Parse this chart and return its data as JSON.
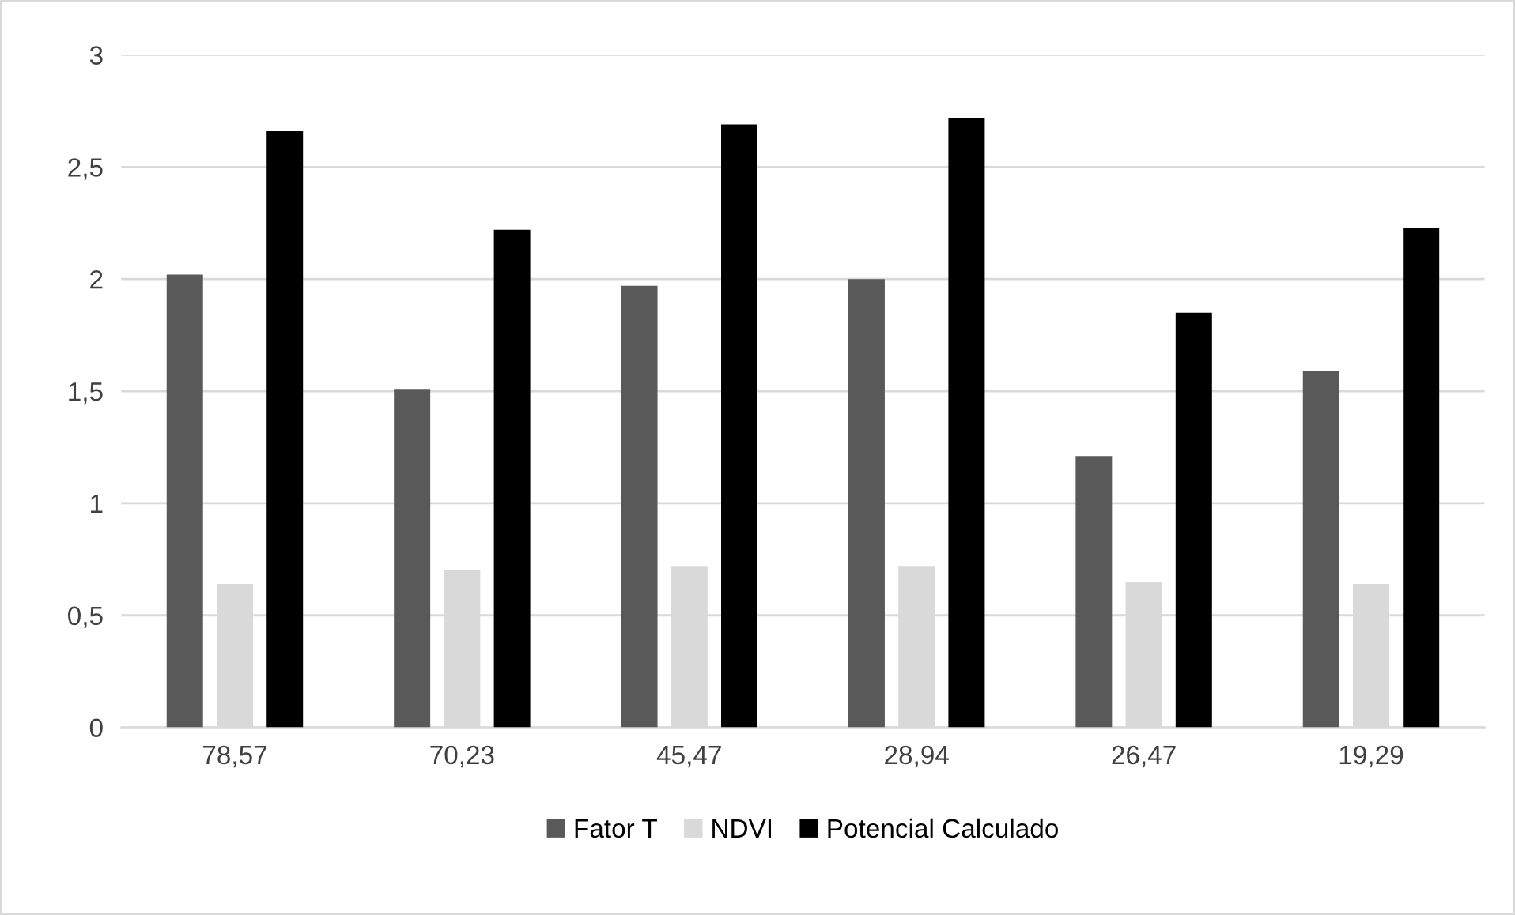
{
  "chart_data": {
    "type": "bar",
    "categories": [
      "78,57",
      "70,23",
      "45,47",
      "28,94",
      "26,47",
      "19,29"
    ],
    "series": [
      {
        "name": "Fator T",
        "color": "#595959",
        "values": [
          2.02,
          1.51,
          1.97,
          2.0,
          1.21,
          1.59
        ]
      },
      {
        "name": "NDVI",
        "color": "#d9d9d9",
        "values": [
          0.64,
          0.7,
          0.72,
          0.72,
          0.65,
          0.64
        ]
      },
      {
        "name": "Potencial Calculado",
        "color": "#000000",
        "values": [
          2.66,
          2.22,
          2.69,
          2.72,
          1.85,
          2.23
        ]
      }
    ],
    "ylim": [
      0,
      3
    ],
    "yticks": [
      {
        "value": 0,
        "label": "0"
      },
      {
        "value": 0.5,
        "label": "0,5"
      },
      {
        "value": 1,
        "label": "1"
      },
      {
        "value": 1.5,
        "label": "1,5"
      },
      {
        "value": 2,
        "label": "2"
      },
      {
        "value": 2.5,
        "label": "2,5"
      },
      {
        "value": 3,
        "label": "3"
      }
    ],
    "grid": "y",
    "legend": "bottom"
  }
}
